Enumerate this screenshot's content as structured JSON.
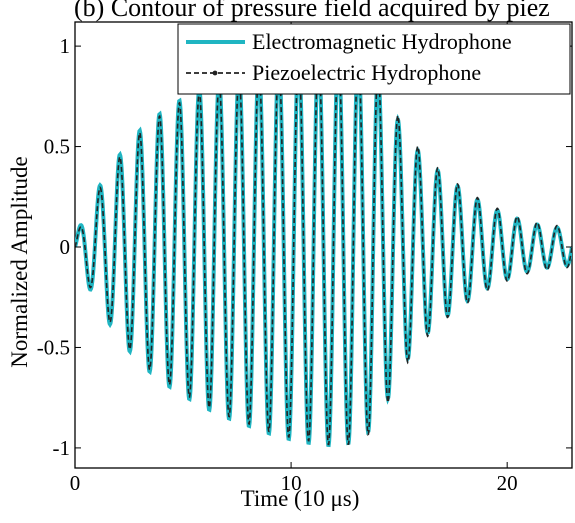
{
  "figure": {
    "title_partial": "(b) Contour of pressure field acquired by piez"
  },
  "chart_data": {
    "type": "line",
    "xlabel": "Time (10 μs)",
    "ylabel": "Normalized Amplitude",
    "xlim": [
      0,
      23
    ],
    "ylim": [
      -1.1,
      1.12
    ],
    "xticks": [
      0,
      10,
      20
    ],
    "yticks": [
      -1,
      -0.5,
      0,
      0.5,
      1
    ],
    "xtick_labels": [
      "0",
      "10",
      "20"
    ],
    "ytick_labels": [
      "-1",
      "-0.5",
      "0",
      "0.5",
      "1"
    ],
    "grid": false,
    "legend_position": "top-right",
    "series": [
      {
        "name": "Electromagnetic Hydrophone",
        "color": "#1fb5c2",
        "style": "solid",
        "period": 0.92,
        "envelope_x": [
          0,
          0.3,
          1.0,
          2.0,
          3.0,
          4.0,
          5.0,
          6.0,
          7.0,
          8.0,
          9.0,
          10.0,
          11.0,
          12.0,
          13.0,
          14.0,
          15.0,
          16.0,
          17.0,
          18.0,
          19.0,
          20.0,
          21.0,
          22.0,
          23.0
        ],
        "envelope_y": [
          0.05,
          0.12,
          0.28,
          0.45,
          0.58,
          0.67,
          0.74,
          0.8,
          0.85,
          0.89,
          0.93,
          0.96,
          0.98,
          0.99,
          0.97,
          0.88,
          0.62,
          0.46,
          0.36,
          0.28,
          0.21,
          0.16,
          0.12,
          0.1,
          0.09
        ]
      },
      {
        "name": "Piezoelectric Hydrophone",
        "color": "#222222",
        "style": "dashed-marker",
        "period": 0.92,
        "envelope_x": [
          0,
          0.3,
          1.0,
          2.0,
          3.0,
          4.0,
          5.0,
          6.0,
          7.0,
          8.0,
          9.0,
          10.0,
          11.0,
          12.0,
          13.0,
          14.0,
          15.0,
          16.0,
          17.0,
          18.0,
          19.0,
          20.0,
          21.0,
          22.0,
          23.0
        ],
        "envelope_y": [
          0.05,
          0.11,
          0.27,
          0.44,
          0.57,
          0.66,
          0.73,
          0.79,
          0.84,
          0.88,
          0.92,
          0.95,
          0.97,
          0.99,
          0.98,
          0.9,
          0.64,
          0.48,
          0.37,
          0.29,
          0.22,
          0.17,
          0.13,
          0.11,
          0.1
        ]
      }
    ]
  }
}
